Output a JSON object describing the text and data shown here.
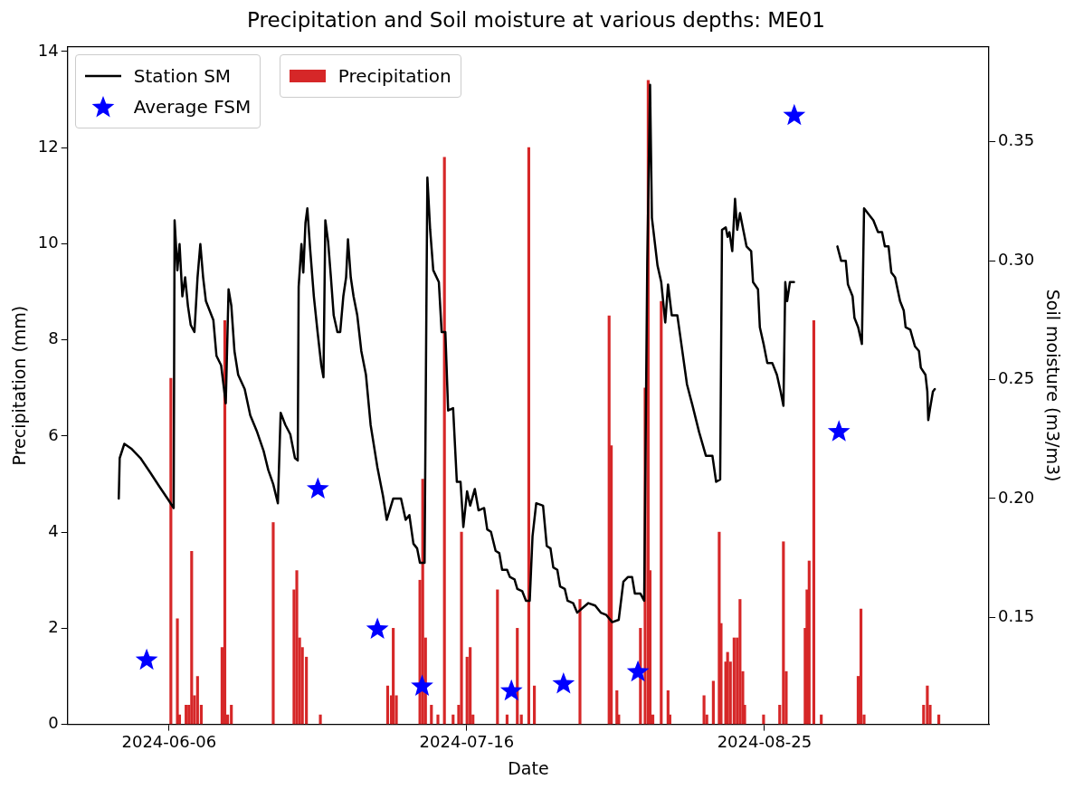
{
  "chart_data": {
    "type": "bar",
    "title": "Precipitation and Soil moisture at various depths: ME01",
    "xlabel": "Date",
    "ylabel": "Precipitation (mm)",
    "y2label": "Soil moisture (m3/m3)",
    "xlim": [
      "2024-05-23T09:00",
      "2024-09-24T04:00"
    ],
    "xticks": [
      "2024-06-06",
      "2024-07-16",
      "2024-08-25"
    ],
    "ylim": [
      0,
      14.1
    ],
    "yticks": [
      0,
      2,
      4,
      6,
      8,
      10,
      12,
      14
    ],
    "y2lim": [
      0.105,
      0.39
    ],
    "y2ticks": [
      0.15,
      {
        "value": 0.2,
        "label": "0.20"
      },
      0.25,
      {
        "value": 0.3,
        "label": "0.30"
      },
      0.35
    ],
    "grid": false,
    "legend": "top left",
    "series": [
      {
        "type": "line",
        "name": "Station SM",
        "color": "#000000",
        "axis": "y2",
        "line_style": "solid",
        "x": [
          "2024-05-30T06:00",
          "2024-05-30T09:00",
          "2024-05-31T00:00",
          "2024-05-31T22:00",
          "2024-06-02T04:00",
          "2024-06-03T11:00",
          "2024-06-04T17:00",
          "2024-06-06T00:00",
          "2024-06-06T15:00",
          "2024-06-06T18:00",
          "2024-06-07T03:00",
          "2024-06-07T10:00",
          "2024-06-07T19:00",
          "2024-06-08T04:00",
          "2024-06-08T13:00",
          "2024-06-08T22:00",
          "2024-06-09T10:00",
          "2024-06-09T20:00",
          "2024-06-10T05:00",
          "2024-06-10T14:00",
          "2024-06-10T23:00",
          "2024-06-11T23:00",
          "2024-06-12T09:00",
          "2024-06-13T00:00",
          "2024-06-13T15:00",
          "2024-06-14T00:00",
          "2024-06-14T09:00",
          "2024-06-14T19:00",
          "2024-06-15T07:00",
          "2024-06-16T04:00",
          "2024-06-16T22:00",
          "2024-06-17T20:00",
          "2024-06-18T17:00",
          "2024-06-19T08:00",
          "2024-06-20T00:00",
          "2024-06-20T15:00",
          "2024-06-21T00:00",
          "2024-06-21T15:00",
          "2024-06-22T07:00",
          "2024-06-22T22:00",
          "2024-06-23T07:00",
          "2024-06-23T10:00",
          "2024-06-23T19:00",
          "2024-06-24T01:00",
          "2024-06-24T08:00",
          "2024-06-24T14:00",
          "2024-06-24T23:00",
          "2024-06-25T11:00",
          "2024-06-25T23:00",
          "2024-06-26T11:00",
          "2024-06-26T18:00",
          "2024-06-27T00:00",
          "2024-06-27T09:00",
          "2024-06-27T18:00",
          "2024-06-28T03:00",
          "2024-06-28T15:00",
          "2024-06-29T00:00",
          "2024-06-29T10:00",
          "2024-06-29T19:00",
          "2024-06-30T01:00",
          "2024-06-30T10:00",
          "2024-06-30T19:00",
          "2024-07-01T07:00",
          "2024-07-01T20:00",
          "2024-07-02T11:00",
          "2024-07-03T02:00",
          "2024-07-04T00:00",
          "2024-07-04T18:00",
          "2024-07-05T06:00",
          "2024-07-06T03:00",
          "2024-07-07T04:00",
          "2024-07-07T19:00",
          "2024-07-08T07:00",
          "2024-07-08T20:00",
          "2024-07-09T08:00",
          "2024-07-09T17:00",
          "2024-07-10T08:00",
          "2024-07-10T14:00",
          "2024-07-10T17:00",
          "2024-07-11T02:00",
          "2024-07-11T12:00",
          "2024-07-12T06:00",
          "2024-07-12T15:00",
          "2024-07-13T03:00",
          "2024-07-13T12:00",
          "2024-07-14T04:00",
          "2024-07-14T16:00",
          "2024-07-15T04:00",
          "2024-07-15T13:00",
          "2024-07-16T01:00",
          "2024-07-16T11:00",
          "2024-07-17T02:00",
          "2024-07-17T14:00",
          "2024-07-18T08:00",
          "2024-07-18T18:00",
          "2024-07-19T06:00",
          "2024-07-19T21:00",
          "2024-07-20T09:00",
          "2024-07-20T18:00",
          "2024-07-21T10:00",
          "2024-07-21T19:00",
          "2024-07-22T10:00",
          "2024-07-22T19:00",
          "2024-07-23T11:00",
          "2024-07-23T23:00",
          "2024-07-24T11:00",
          "2024-07-24T20:00",
          "2024-07-25T08:00",
          "2024-07-26T06:00",
          "2024-07-26T18:00",
          "2024-07-27T06:00",
          "2024-07-27T15:00",
          "2024-07-28T04:00",
          "2024-07-28T13:00",
          "2024-07-29T04:00",
          "2024-07-29T13:00",
          "2024-07-30T07:00",
          "2024-07-30T20:00",
          "2024-07-31T14:00",
          "2024-08-01T08:00",
          "2024-08-02T06:00",
          "2024-08-03T00:00",
          "2024-08-03T18:00",
          "2024-08-04T13:00",
          "2024-08-05T10:00",
          "2024-08-06T01:00",
          "2024-08-06T16:00",
          "2024-08-07T05:00",
          "2024-08-07T14:00",
          "2024-08-08T08:00",
          "2024-08-08T20:00",
          "2024-08-09T06:00",
          "2024-08-09T15:00",
          "2024-08-09T21:00",
          "2024-08-10T15:00",
          "2024-08-11T03:00",
          "2024-08-11T16:00",
          "2024-08-12T01:00",
          "2024-08-12T13:00",
          "2024-08-13T07:00",
          "2024-08-13T22:00",
          "2024-08-14T14:00",
          "2024-08-15T08:00",
          "2024-08-16T05:00",
          "2024-08-17T03:00",
          "2024-08-18T00:00",
          "2024-08-18T12:00",
          "2024-08-19T01:00",
          "2024-08-19T07:00",
          "2024-08-19T19:00",
          "2024-08-20T01:00",
          "2024-08-20T07:00",
          "2024-08-20T16:00",
          "2024-08-21T01:00",
          "2024-08-21T08:00",
          "2024-08-21T17:00",
          "2024-08-22T05:00",
          "2024-08-22T14:00",
          "2024-08-23T05:00",
          "2024-08-23T11:00",
          "2024-08-24T03:00",
          "2024-08-24T09:00",
          "2024-08-24T21:00",
          "2024-08-25T09:00",
          "2024-08-26T01:00",
          "2024-08-26T16:00",
          "2024-08-27T04:00",
          "2024-08-27T13:00",
          "2024-08-27T19:00",
          "2024-08-28T01:00",
          "2024-08-28T10:00",
          "2024-08-28T23:00",
          "2024-08-31T00:00",
          "2024-09-03T19:00",
          "2024-09-04T07:00",
          "2024-09-04T22:00",
          "2024-09-05T05:00",
          "2024-09-05T20:00",
          "2024-09-06T02:00",
          "2024-09-06T14:00",
          "2024-09-07T02:00",
          "2024-09-07T09:00",
          "2024-09-08T03:00",
          "2024-09-08T15:00",
          "2024-09-09T06:00",
          "2024-09-09T19:00",
          "2024-09-10T04:00",
          "2024-09-10T16:00",
          "2024-09-11T01:00",
          "2024-09-11T13:00",
          "2024-09-12T05:00",
          "2024-09-12T17:00",
          "2024-09-12T23:00",
          "2024-09-13T14:00",
          "2024-09-14T05:00",
          "2024-09-14T18:00",
          "2024-09-15T00:00",
          "2024-09-15T15:00",
          "2024-09-15T21:00",
          "2024-09-16T00:00",
          "2024-09-16T06:00",
          "2024-09-16T15:00",
          "2024-09-16T21:00"
        ],
        "values": [
          0.2,
          0.217,
          0.223,
          0.221,
          0.217,
          0.211,
          0.205,
          0.199,
          0.196,
          0.317,
          0.296,
          0.307,
          0.285,
          0.293,
          0.281,
          0.273,
          0.27,
          0.293,
          0.307,
          0.293,
          0.283,
          0.275,
          0.26,
          0.256,
          0.24,
          0.288,
          0.281,
          0.262,
          0.252,
          0.246,
          0.235,
          0.228,
          0.22,
          0.212,
          0.206,
          0.198,
          0.236,
          0.231,
          0.227,
          0.217,
          0.216,
          0.289,
          0.307,
          0.295,
          0.316,
          0.322,
          0.305,
          0.285,
          0.27,
          0.256,
          0.251,
          0.317,
          0.308,
          0.293,
          0.277,
          0.27,
          0.27,
          0.285,
          0.293,
          0.309,
          0.293,
          0.285,
          0.277,
          0.262,
          0.252,
          0.231,
          0.213,
          0.201,
          0.191,
          0.2,
          0.2,
          0.191,
          0.193,
          0.181,
          0.179,
          0.173,
          0.173,
          0.283,
          0.335,
          0.313,
          0.296,
          0.291,
          0.27,
          0.27,
          0.237,
          0.238,
          0.207,
          0.207,
          0.188,
          0.203,
          0.197,
          0.204,
          0.195,
          0.196,
          0.187,
          0.186,
          0.178,
          0.177,
          0.17,
          0.17,
          0.167,
          0.166,
          0.162,
          0.161,
          0.157,
          0.157,
          0.184,
          0.198,
          0.197,
          0.18,
          0.179,
          0.171,
          0.17,
          0.163,
          0.162,
          0.157,
          0.156,
          0.152,
          0.154,
          0.156,
          0.155,
          0.152,
          0.151,
          0.148,
          0.149,
          0.165,
          0.167,
          0.167,
          0.16,
          0.16,
          0.157,
          0.299,
          0.374,
          0.318,
          0.298,
          0.291,
          0.274,
          0.29,
          0.277,
          0.277,
          0.263,
          0.248,
          0.239,
          0.228,
          0.218,
          0.218,
          0.207,
          0.208,
          0.313,
          0.314,
          0.31,
          0.312,
          0.304,
          0.326,
          0.313,
          0.32,
          0.312,
          0.306,
          0.304,
          0.291,
          0.288,
          0.272,
          0.265,
          0.257,
          0.257,
          0.252,
          0.245,
          0.239,
          0.291,
          0.283,
          0.291,
          0.291,
          null,
          0.306,
          0.3,
          0.3,
          0.29,
          0.285,
          0.276,
          0.272,
          0.265,
          0.322,
          0.319,
          0.317,
          0.312,
          0.312,
          0.306,
          0.306,
          0.295,
          0.293,
          0.283,
          0.279,
          0.272,
          0.271,
          0.264,
          0.262,
          0.255,
          0.252,
          0.245,
          0.233,
          0.238,
          0.245,
          0.246
        ]
      },
      {
        "type": "scatter",
        "name": "Average FSM",
        "color": "#0000ff",
        "axis": "y2",
        "marker": "star",
        "x": [
          "2024-06-03",
          "2024-06-26",
          "2024-07-04",
          "2024-07-10",
          "2024-07-22",
          "2024-07-29",
          "2024-08-08",
          "2024-08-29",
          "2024-09-04"
        ],
        "values": [
          0.132,
          0.204,
          0.145,
          0.121,
          0.119,
          0.122,
          0.127,
          0.361,
          0.228
        ]
      },
      {
        "name": "Precipitation",
        "color": "#d62728",
        "x": [
          "2024-06-06T06:00",
          "2024-06-07T03:00",
          "2024-06-07T10:00",
          "2024-06-08T07:00",
          "2024-06-08T16:00",
          "2024-06-09T01:00",
          "2024-06-09T10:00",
          "2024-06-09T20:00",
          "2024-06-10T08:00",
          "2024-06-13T03:00",
          "2024-06-13T12:00",
          "2024-06-13T21:00",
          "2024-06-14T09:00",
          "2024-06-20T00:00",
          "2024-06-22T19:00",
          "2024-06-23T04:00",
          "2024-06-23T13:00",
          "2024-06-23T22:00",
          "2024-06-24T11:00",
          "2024-06-26T08:00",
          "2024-07-05T09:00",
          "2024-07-05T21:00",
          "2024-07-06T03:00",
          "2024-07-06T13:00",
          "2024-07-09T17:00",
          "2024-07-10T02:00",
          "2024-07-10T11:00",
          "2024-07-11T06:00",
          "2024-07-12T03:00",
          "2024-07-13T00:00",
          "2024-07-14T04:00",
          "2024-07-14T22:00",
          "2024-07-15T07:00",
          "2024-07-16T01:00",
          "2024-07-16T11:00",
          "2024-07-16T20:00",
          "2024-07-20T03:00",
          "2024-07-21T10:00",
          "2024-07-22T19:00",
          "2024-07-23T08:00",
          "2024-07-24T08:00",
          "2024-07-25T02:00",
          "2024-07-31T05:00",
          "2024-08-04T03:00",
          "2024-08-04T10:00",
          "2024-08-05T04:00",
          "2024-08-05T10:00",
          "2024-08-08T08:00",
          "2024-08-08T23:00",
          "2024-08-09T09:00",
          "2024-08-09T15:00",
          "2024-08-10T00:00",
          "2024-08-11T03:00",
          "2024-08-12T01:00",
          "2024-08-12T07:00",
          "2024-08-16T21:00",
          "2024-08-17T06:00",
          "2024-08-18T03:00",
          "2024-08-18T22:00",
          "2024-08-19T04:00",
          "2024-08-19T19:00",
          "2024-08-20T01:00",
          "2024-08-20T10:00",
          "2024-08-20T22:00",
          "2024-08-21T08:00",
          "2024-08-21T17:00",
          "2024-08-22T02:00",
          "2024-08-22T08:00",
          "2024-08-24T21:00",
          "2024-08-27T01:00",
          "2024-08-27T13:00",
          "2024-08-27T22:00",
          "2024-08-30T11:00",
          "2024-08-30T17:00",
          "2024-08-31T00:00",
          "2024-08-31T15:00",
          "2024-09-01T15:00",
          "2024-09-06T14:00",
          "2024-09-06T23:00",
          "2024-09-07T09:00",
          "2024-09-15T09:00",
          "2024-09-15T21:00",
          "2024-09-16T06:00",
          "2024-09-17T10:00"
        ],
        "values": [
          7.2,
          2.2,
          0.2,
          0.4,
          0.4,
          3.6,
          0.6,
          1.0,
          0.4,
          1.6,
          8.4,
          0.2,
          0.4,
          4.2,
          2.8,
          3.2,
          1.8,
          1.6,
          1.4,
          0.2,
          0.8,
          0.6,
          2.0,
          0.6,
          3.0,
          5.1,
          1.8,
          0.4,
          0.2,
          11.8,
          0.2,
          0.4,
          4.0,
          1.4,
          1.6,
          0.2,
          2.8,
          0.2,
          2.0,
          0.2,
          12.0,
          0.8,
          2.6,
          8.5,
          5.8,
          0.7,
          0.2,
          2.0,
          7.0,
          13.4,
          3.2,
          0.2,
          8.8,
          0.7,
          0.2,
          0.6,
          0.2,
          0.9,
          4.0,
          2.1,
          1.3,
          1.5,
          1.3,
          1.8,
          1.8,
          2.6,
          1.1,
          0.4,
          0.2,
          0.4,
          3.8,
          1.1,
          2.0,
          2.8,
          3.4,
          8.4,
          0.2,
          1.0,
          2.4,
          0.2,
          0.4,
          0.8,
          0.4,
          0.2
        ]
      }
    ]
  }
}
